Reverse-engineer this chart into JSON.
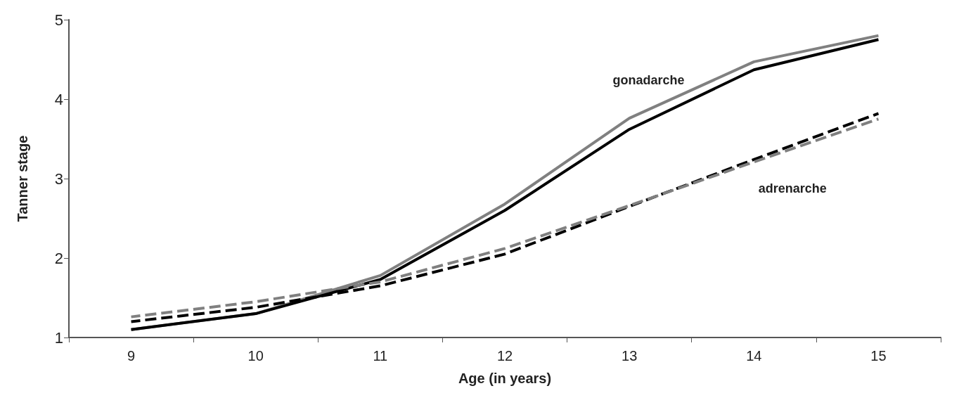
{
  "chart_data": {
    "type": "line",
    "xlabel": "Age (in years)",
    "ylabel": "Tanner stage",
    "categories": [
      "9",
      "10",
      "11",
      "12",
      "13",
      "14",
      "15"
    ],
    "series": [
      {
        "color": "#808080",
        "line_style": "solid",
        "values": [
          1.1,
          1.3,
          1.78,
          2.68,
          3.76,
          4.47,
          4.8
        ]
      },
      {
        "color": "#000000",
        "line_style": "solid",
        "values": [
          1.1,
          1.3,
          1.73,
          2.6,
          3.62,
          4.37,
          4.75
        ]
      },
      {
        "color": "#000000",
        "line_style": "dashed",
        "values": [
          1.2,
          1.38,
          1.65,
          2.05,
          2.65,
          3.24,
          3.82
        ]
      },
      {
        "color": "#808080",
        "line_style": "dashed",
        "values": [
          1.26,
          1.45,
          1.7,
          2.12,
          2.66,
          3.21,
          3.75
        ]
      }
    ],
    "ylim": [
      1,
      5
    ],
    "yticks": [
      1,
      2,
      3,
      4,
      5
    ],
    "grid": false,
    "marker": "none",
    "annotations": [
      "gonadarche",
      "adrenarche"
    ]
  }
}
